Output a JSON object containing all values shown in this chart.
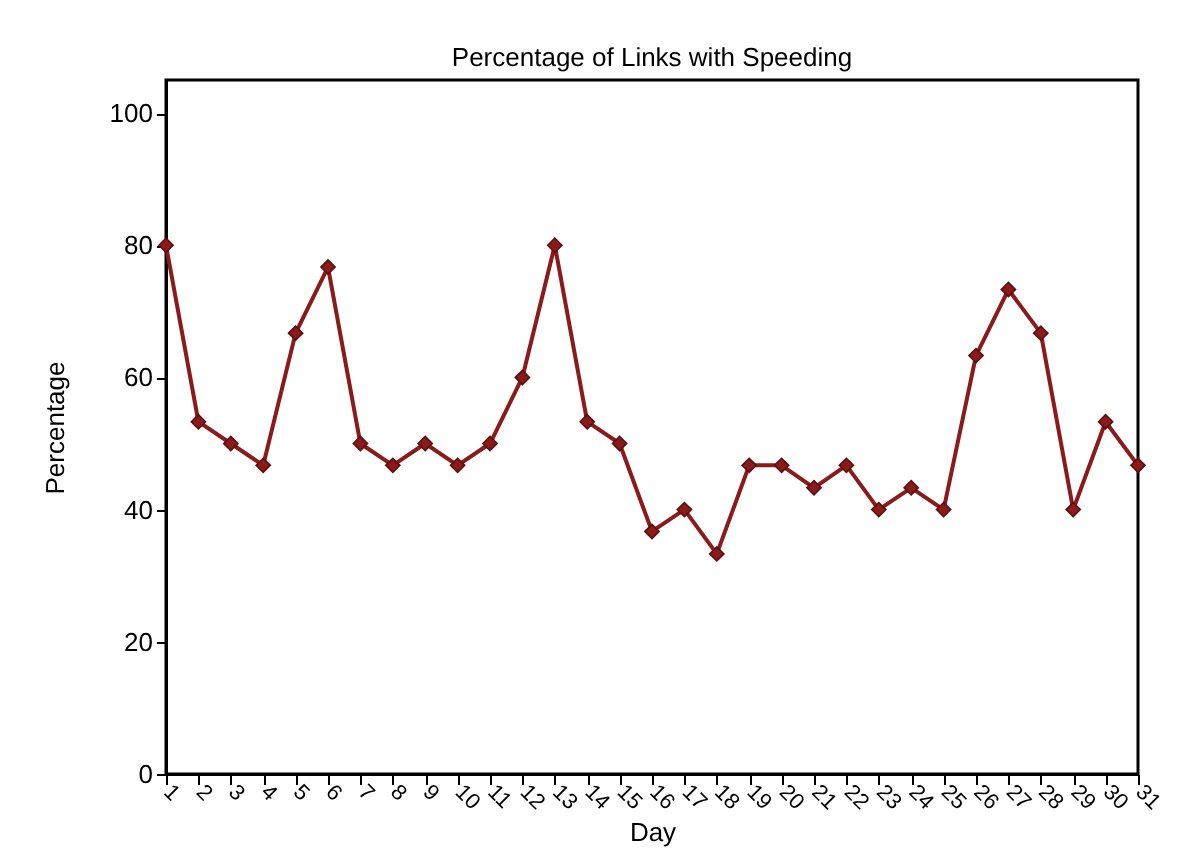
{
  "chart_data": {
    "type": "line",
    "title": "Percentage of Links with Speeding",
    "xlabel": "Day",
    "ylabel": "Percentage",
    "x": [
      1,
      2,
      3,
      4,
      5,
      6,
      7,
      8,
      9,
      10,
      11,
      12,
      13,
      14,
      15,
      16,
      17,
      18,
      19,
      20,
      21,
      22,
      23,
      24,
      25,
      26,
      27,
      28,
      29,
      30,
      31
    ],
    "series": [
      {
        "color": "#8b1a1a",
        "values": [
          80,
          53.3,
          50,
          46.7,
          66.7,
          76.7,
          50,
          46.7,
          50,
          46.7,
          50,
          60,
          80,
          53.3,
          50,
          36.7,
          40,
          33.3,
          46.7,
          46.7,
          43.3,
          46.7,
          40,
          43.3,
          40,
          63.3,
          73.3,
          66.7,
          40,
          53.3,
          46.7
        ]
      }
    ],
    "xlim": [
      1,
      31
    ],
    "xticks": [
      1,
      2,
      3,
      4,
      5,
      6,
      7,
      8,
      9,
      10,
      11,
      12,
      13,
      14,
      15,
      16,
      17,
      18,
      19,
      20,
      21,
      22,
      23,
      24,
      25,
      26,
      27,
      28,
      29,
      30,
      31
    ],
    "ylim": [
      0,
      105
    ],
    "yticks": [
      0,
      20,
      40,
      60,
      80,
      100
    ],
    "grid": false,
    "legend": false,
    "marker": "diamond",
    "line_style": "solid"
  }
}
